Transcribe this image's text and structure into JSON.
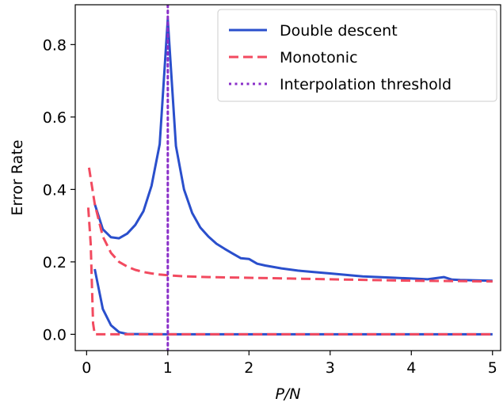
{
  "chart_data": {
    "type": "line",
    "title": "",
    "xlabel": "P/N",
    "ylabel": "Error Rate",
    "xlim": [
      -0.14,
      5.1
    ],
    "ylim": [
      -0.045,
      0.91
    ],
    "xticks": [
      0,
      1,
      2,
      3,
      4,
      5
    ],
    "xtick_labels": [
      "0",
      "1",
      "2",
      "3",
      "4",
      "5"
    ],
    "yticks": [
      0.0,
      0.2,
      0.4,
      0.6,
      0.8
    ],
    "ytick_labels": [
      "0.0",
      "0.2",
      "0.4",
      "0.6",
      "0.8"
    ],
    "grid": false,
    "legend": {
      "position": "top-right",
      "entries": [
        {
          "label": "Double descent",
          "color": "#2a4fcc",
          "style": "solid"
        },
        {
          "label": "Monotonic",
          "color": "#f24a5f",
          "style": "dashed"
        },
        {
          "label": "Interpolation threshold",
          "color": "#8a2fc8",
          "style": "dotted"
        }
      ]
    },
    "series": [
      {
        "name": "Double descent",
        "color": "#2a4fcc",
        "style": "solid",
        "segments": [
          {
            "x": [
              0.1,
              0.2,
              0.3,
              0.4,
              0.5,
              0.6,
              0.7,
              0.8,
              0.9,
              1.0,
              1.1,
              1.2,
              1.3,
              1.4,
              1.5,
              1.6,
              1.7,
              1.8,
              1.9,
              2.0,
              2.1,
              2.2,
              2.4,
              2.6,
              2.8,
              3.0,
              3.2,
              3.4,
              3.6,
              3.8,
              4.0,
              4.2,
              4.4,
              4.5,
              4.6,
              4.8,
              5.0
            ],
            "y": [
              0.36,
              0.29,
              0.268,
              0.265,
              0.278,
              0.302,
              0.34,
              0.41,
              0.525,
              0.87,
              0.52,
              0.4,
              0.335,
              0.295,
              0.27,
              0.25,
              0.236,
              0.223,
              0.21,
              0.208,
              0.195,
              0.19,
              0.182,
              0.176,
              0.172,
              0.168,
              0.164,
              0.16,
              0.158,
              0.156,
              0.154,
              0.152,
              0.158,
              0.151,
              0.15,
              0.149,
              0.148
            ]
          },
          {
            "x": [
              0.1,
              0.2,
              0.3,
              0.4,
              0.5,
              1.0,
              2.0,
              3.0,
              4.0,
              5.0
            ],
            "y": [
              0.18,
              0.07,
              0.025,
              0.006,
              0.001,
              0.0,
              0.0,
              0.0,
              0.0,
              0.0
            ]
          }
        ]
      },
      {
        "name": "Monotonic",
        "color": "#f24a5f",
        "style": "dashed",
        "segments": [
          {
            "x": [
              0.03,
              0.1,
              0.2,
              0.3,
              0.4,
              0.5,
              0.6,
              0.7,
              0.8,
              0.9,
              1.0,
              1.2,
              1.5,
              2.0,
              2.5,
              3.0,
              3.5,
              4.0,
              4.5,
              5.0
            ],
            "y": [
              0.46,
              0.36,
              0.27,
              0.225,
              0.2,
              0.187,
              0.178,
              0.172,
              0.168,
              0.165,
              0.163,
              0.16,
              0.158,
              0.156,
              0.154,
              0.152,
              0.15,
              0.148,
              0.147,
              0.146
            ]
          },
          {
            "x": [
              0.02,
              0.05,
              0.08,
              0.1,
              0.2,
              1.0,
              2.0,
              3.0,
              4.0,
              5.0
            ],
            "y": [
              0.35,
              0.25,
              0.03,
              0.0,
              0.0,
              0.0,
              0.0,
              0.0,
              0.0,
              0.0
            ]
          }
        ]
      },
      {
        "name": "Interpolation threshold",
        "color": "#8a2fc8",
        "style": "dotted",
        "type": "vline",
        "x": 1.0
      }
    ]
  }
}
